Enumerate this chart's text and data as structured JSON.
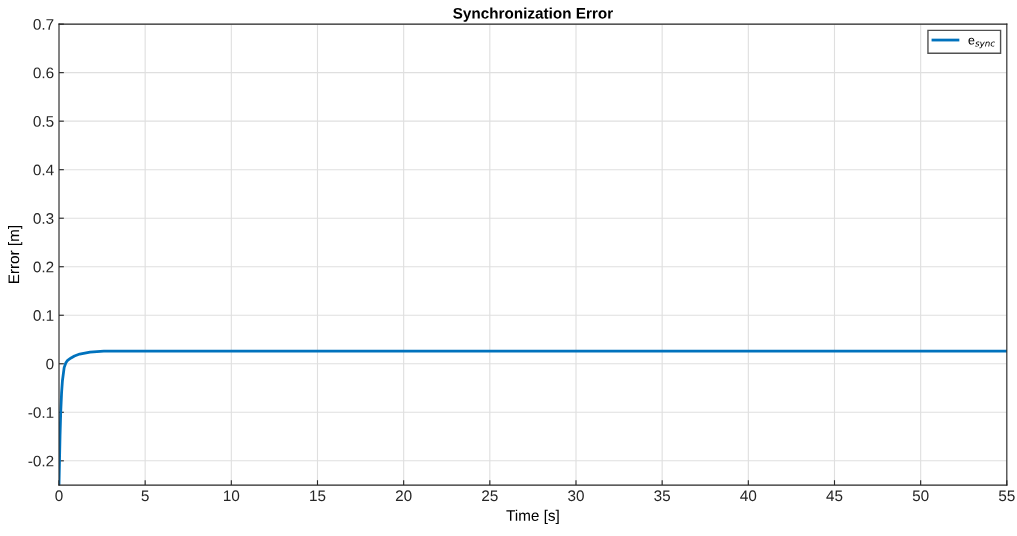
{
  "chart_data": {
    "type": "line",
    "title": "Synchronization Error",
    "xlabel": "Time [s]",
    "ylabel": "Error [m]",
    "series": [
      {
        "name": "e$_{sync}$",
        "color": "#0072bd",
        "x": [
          0,
          0.03,
          0.06,
          0.1,
          0.15,
          0.2,
          0.3,
          0.4,
          0.5,
          0.7,
          0.9,
          1.2,
          1.5,
          1.8,
          2.2,
          2.6,
          3,
          4,
          5,
          10,
          20,
          30,
          40,
          50,
          55
        ],
        "values": [
          -0.25,
          -0.2,
          -0.15,
          -0.1,
          -0.06,
          -0.035,
          -0.008,
          0.002,
          0.007,
          0.012,
          0.016,
          0.02,
          0.022,
          0.024,
          0.025,
          0.026,
          0.026,
          0.026,
          0.026,
          0.026,
          0.026,
          0.026,
          0.026,
          0.026,
          0.026
        ]
      }
    ],
    "xlim": [
      0,
      55
    ],
    "xticks": [
      0,
      5,
      10,
      15,
      20,
      25,
      30,
      35,
      40,
      45,
      50,
      55
    ],
    "ylim": [
      -0.25,
      0.7
    ],
    "yticks": [
      -0.2,
      -0.1,
      0,
      0.1,
      0.2,
      0.3,
      0.4,
      0.5,
      0.6,
      0.7
    ],
    "grid": true,
    "legend": "top right",
    "marker": "none",
    "line_style": "solid"
  }
}
